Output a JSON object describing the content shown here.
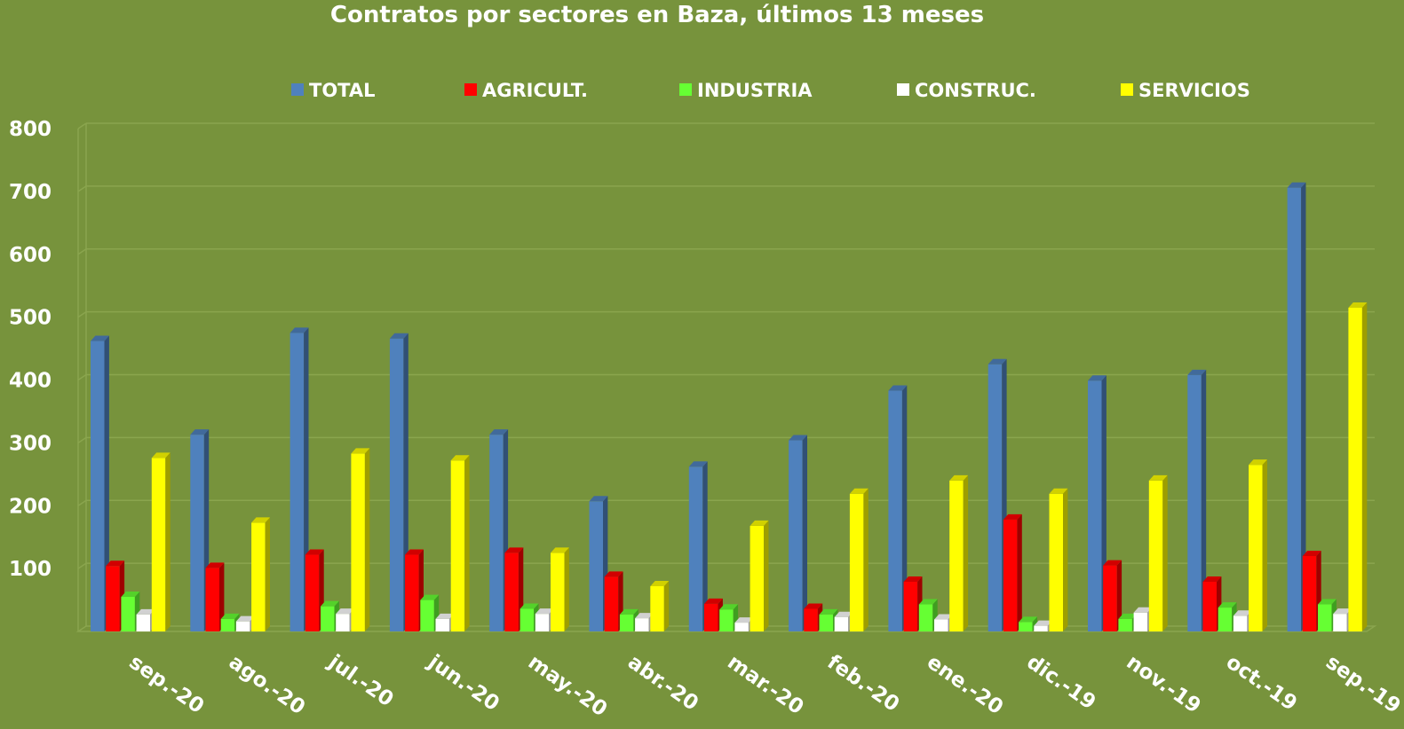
{
  "colors": {
    "background": "#77933c",
    "grid": "#8aa54e",
    "TOTAL": "#4f81bd",
    "AGRICULT.": "#ff0000",
    "INDUSTRIA": "#66ff33",
    "CONSTRUC.": "#ffffff",
    "SERVICIOS": "#ffff00"
  },
  "chart_data": {
    "type": "bar",
    "title": "Contratos por sectores en Baza, últimos 13 meses",
    "xlabel": "",
    "ylabel": "",
    "ylim": [
      0,
      800
    ],
    "yticks": [
      "100",
      "200",
      "300",
      "400",
      "500",
      "600",
      "700",
      "800"
    ],
    "grid": true,
    "legend_position": "top",
    "categories": [
      "sep.-20",
      "ago.-20",
      "jul.-20",
      "jun.-20",
      "may.-20",
      "abr.-20",
      "mar.-20",
      "feb.-20",
      "ene.-20",
      "dic.-19",
      "nov.-19",
      "oct.-19",
      "sep.-19"
    ],
    "series": [
      {
        "name": "TOTAL",
        "values": [
          462,
          313,
          475,
          466,
          313,
          207,
          262,
          304,
          383,
          425,
          399,
          408,
          706
        ]
      },
      {
        "name": "AGRICULT.",
        "values": [
          104,
          101,
          122,
          122,
          125,
          87,
          44,
          36,
          79,
          178,
          105,
          79,
          120
        ]
      },
      {
        "name": "INDUSTRIA",
        "values": [
          55,
          20,
          40,
          50,
          36,
          27,
          35,
          27,
          43,
          15,
          20,
          38,
          43
        ]
      },
      {
        "name": "CONSTRUC.",
        "values": [
          27,
          16,
          28,
          20,
          28,
          21,
          14,
          23,
          19,
          9,
          30,
          25,
          28
        ]
      },
      {
        "name": "SERVICIOS",
        "values": [
          276,
          173,
          283,
          272,
          125,
          72,
          168,
          219,
          240,
          219,
          240,
          265,
          515
        ]
      }
    ]
  }
}
